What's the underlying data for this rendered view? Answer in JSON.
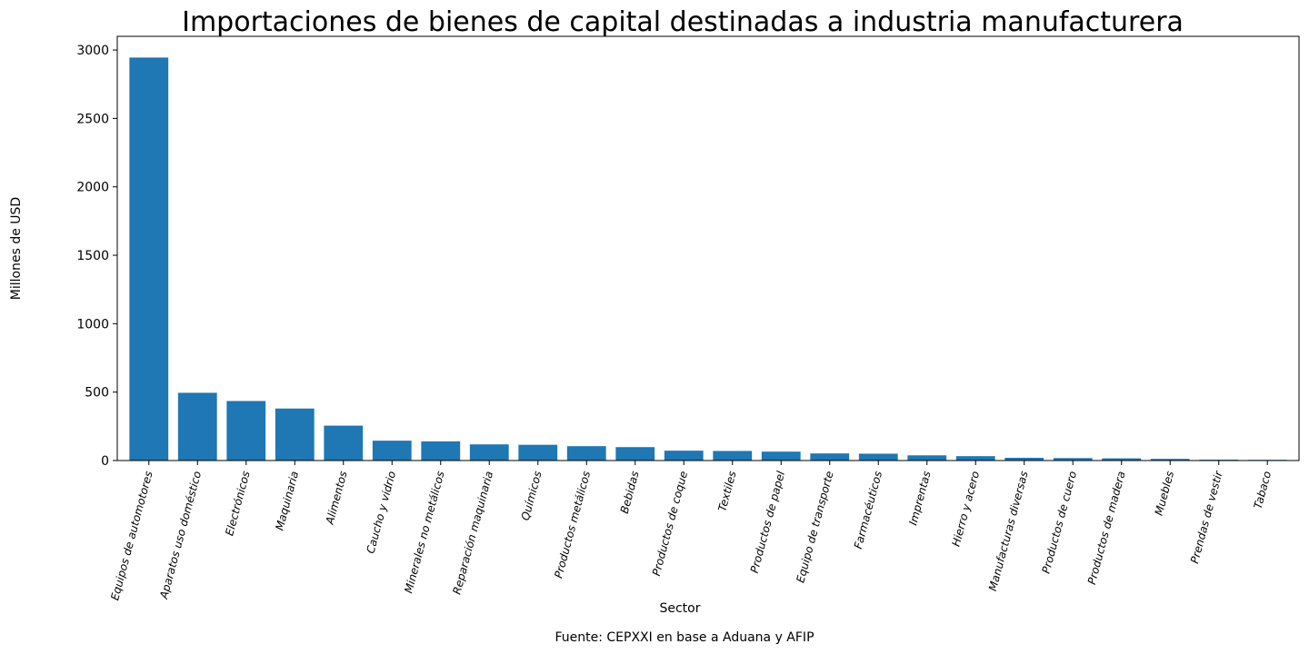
{
  "chart_data": {
    "type": "bar",
    "title": "Importaciones de bienes de capital destinadas a industria manufacturera",
    "xlabel": "Sector",
    "ylabel": "Millones de USD",
    "source": "Fuente: CEPXXI en base a Aduana y AFIP",
    "ylim": [
      0,
      3100
    ],
    "yticks": [
      0,
      500,
      1000,
      1500,
      2000,
      2500,
      3000
    ],
    "grid": false,
    "bar_color": "#1f77b4",
    "categories": [
      "Equipos de automotores",
      "Aparatos uso doméstico",
      "Electrónicos",
      "Maquinaria",
      "Alimentos",
      "Caucho y vidrio",
      "Minerales no metálicos",
      "Reparación maquinaria",
      "Químicos",
      "Productos metálicos",
      "Bebidas",
      "Productos de coque",
      "Textiles",
      "Productos de papel",
      "Equipo de transporte",
      "Farmacéuticos",
      "Imprentas",
      "Hierro y acero",
      "Manufacturas diversas",
      "Productos de cuero",
      "Productos de madera",
      "Muebles",
      "Prendas de vestir",
      "Tabaco"
    ],
    "values": [
      2945,
      495,
      435,
      380,
      255,
      145,
      140,
      118,
      115,
      105,
      98,
      72,
      70,
      65,
      52,
      50,
      38,
      32,
      20,
      18,
      16,
      12,
      6,
      5
    ]
  }
}
